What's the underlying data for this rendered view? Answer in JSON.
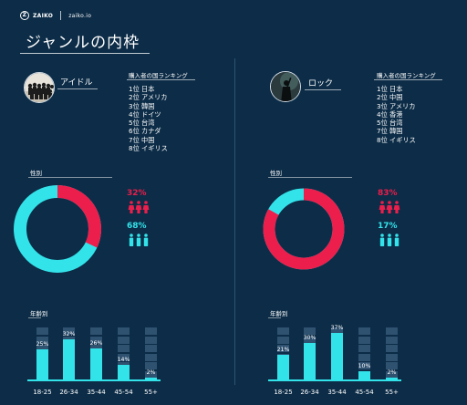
{
  "header": {
    "brand": "ZAIKO",
    "brand_mark": "Z",
    "url": "zaiko.io",
    "title": "ジャンルの内枠"
  },
  "colors": {
    "background": "#0c2c47",
    "female": "#ec1e4b",
    "male": "#33e3ea",
    "bar_empty": "#2f5271"
  },
  "genres": [
    {
      "name": "アイドル",
      "ranking_title": "購入者の国ランキング",
      "ranking": [
        "1位 日本",
        "2位 アメリカ",
        "3位 韓国",
        "4位 ドイツ",
        "5位 台湾",
        "6位 カナダ",
        "7位 中国",
        "8位 イギリス"
      ],
      "gender_label": "性別",
      "female_pct_label": "32%",
      "male_pct_label": "68%",
      "female_share": 0.32,
      "age_label": "年齢別",
      "age_groups": [
        "18-25",
        "26-34",
        "35-44",
        "45-54",
        "55+"
      ],
      "age_values": [
        25,
        32,
        26,
        14,
        2
      ],
      "age_value_labels": [
        "25%",
        "32%",
        "26%",
        "14%",
        "2%"
      ]
    },
    {
      "name": "ロック",
      "ranking_title": "購入者の国ランキング",
      "ranking": [
        "1位 日本",
        "2位 中国",
        "3位 アメリカ",
        "4位 香港",
        "5位 台湾",
        "7位 韓国",
        "8位 イギリス"
      ],
      "gender_label": "性別",
      "female_pct_label": "83%",
      "male_pct_label": "17%",
      "female_share": 0.83,
      "age_label": "年齢別",
      "age_groups": [
        "18-25",
        "26-34",
        "35-44",
        "45-54",
        "55+"
      ],
      "age_values": [
        21,
        30,
        37,
        10,
        2
      ],
      "age_value_labels": [
        "21%",
        "30%",
        "37%",
        "10%",
        "2%"
      ]
    }
  ]
}
